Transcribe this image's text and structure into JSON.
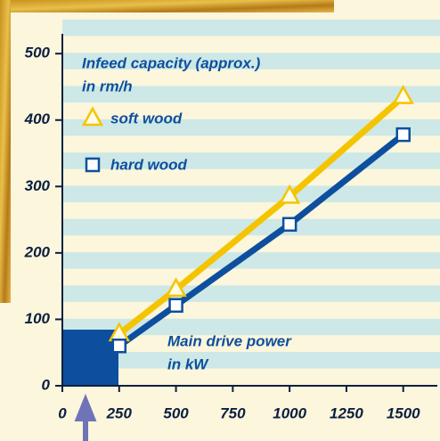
{
  "chart_data": {
    "type": "line",
    "annotations": [
      [
        "Infeed capacity (approx.)",
        "in rm/h"
      ],
      [
        "Main drive power",
        "in kW"
      ]
    ],
    "series": [
      {
        "name": "soft wood",
        "color": "#f5c400",
        "marker": "triangle",
        "x": [
          250,
          500,
          1000,
          1500
        ],
        "values": [
          78,
          145,
          285,
          435
        ]
      },
      {
        "name": "hard wood",
        "color": "#0d4f9e",
        "marker": "square",
        "x": [
          250,
          500,
          1000,
          1500
        ],
        "values": [
          60,
          121,
          243,
          378
        ]
      }
    ],
    "xlim": [
      0,
      1650
    ],
    "xticks": [
      0,
      250,
      500,
      750,
      1000,
      1250,
      1500
    ],
    "ylim": [
      0,
      570
    ],
    "yticks": [
      0,
      100,
      200,
      300,
      400,
      500
    ]
  }
}
